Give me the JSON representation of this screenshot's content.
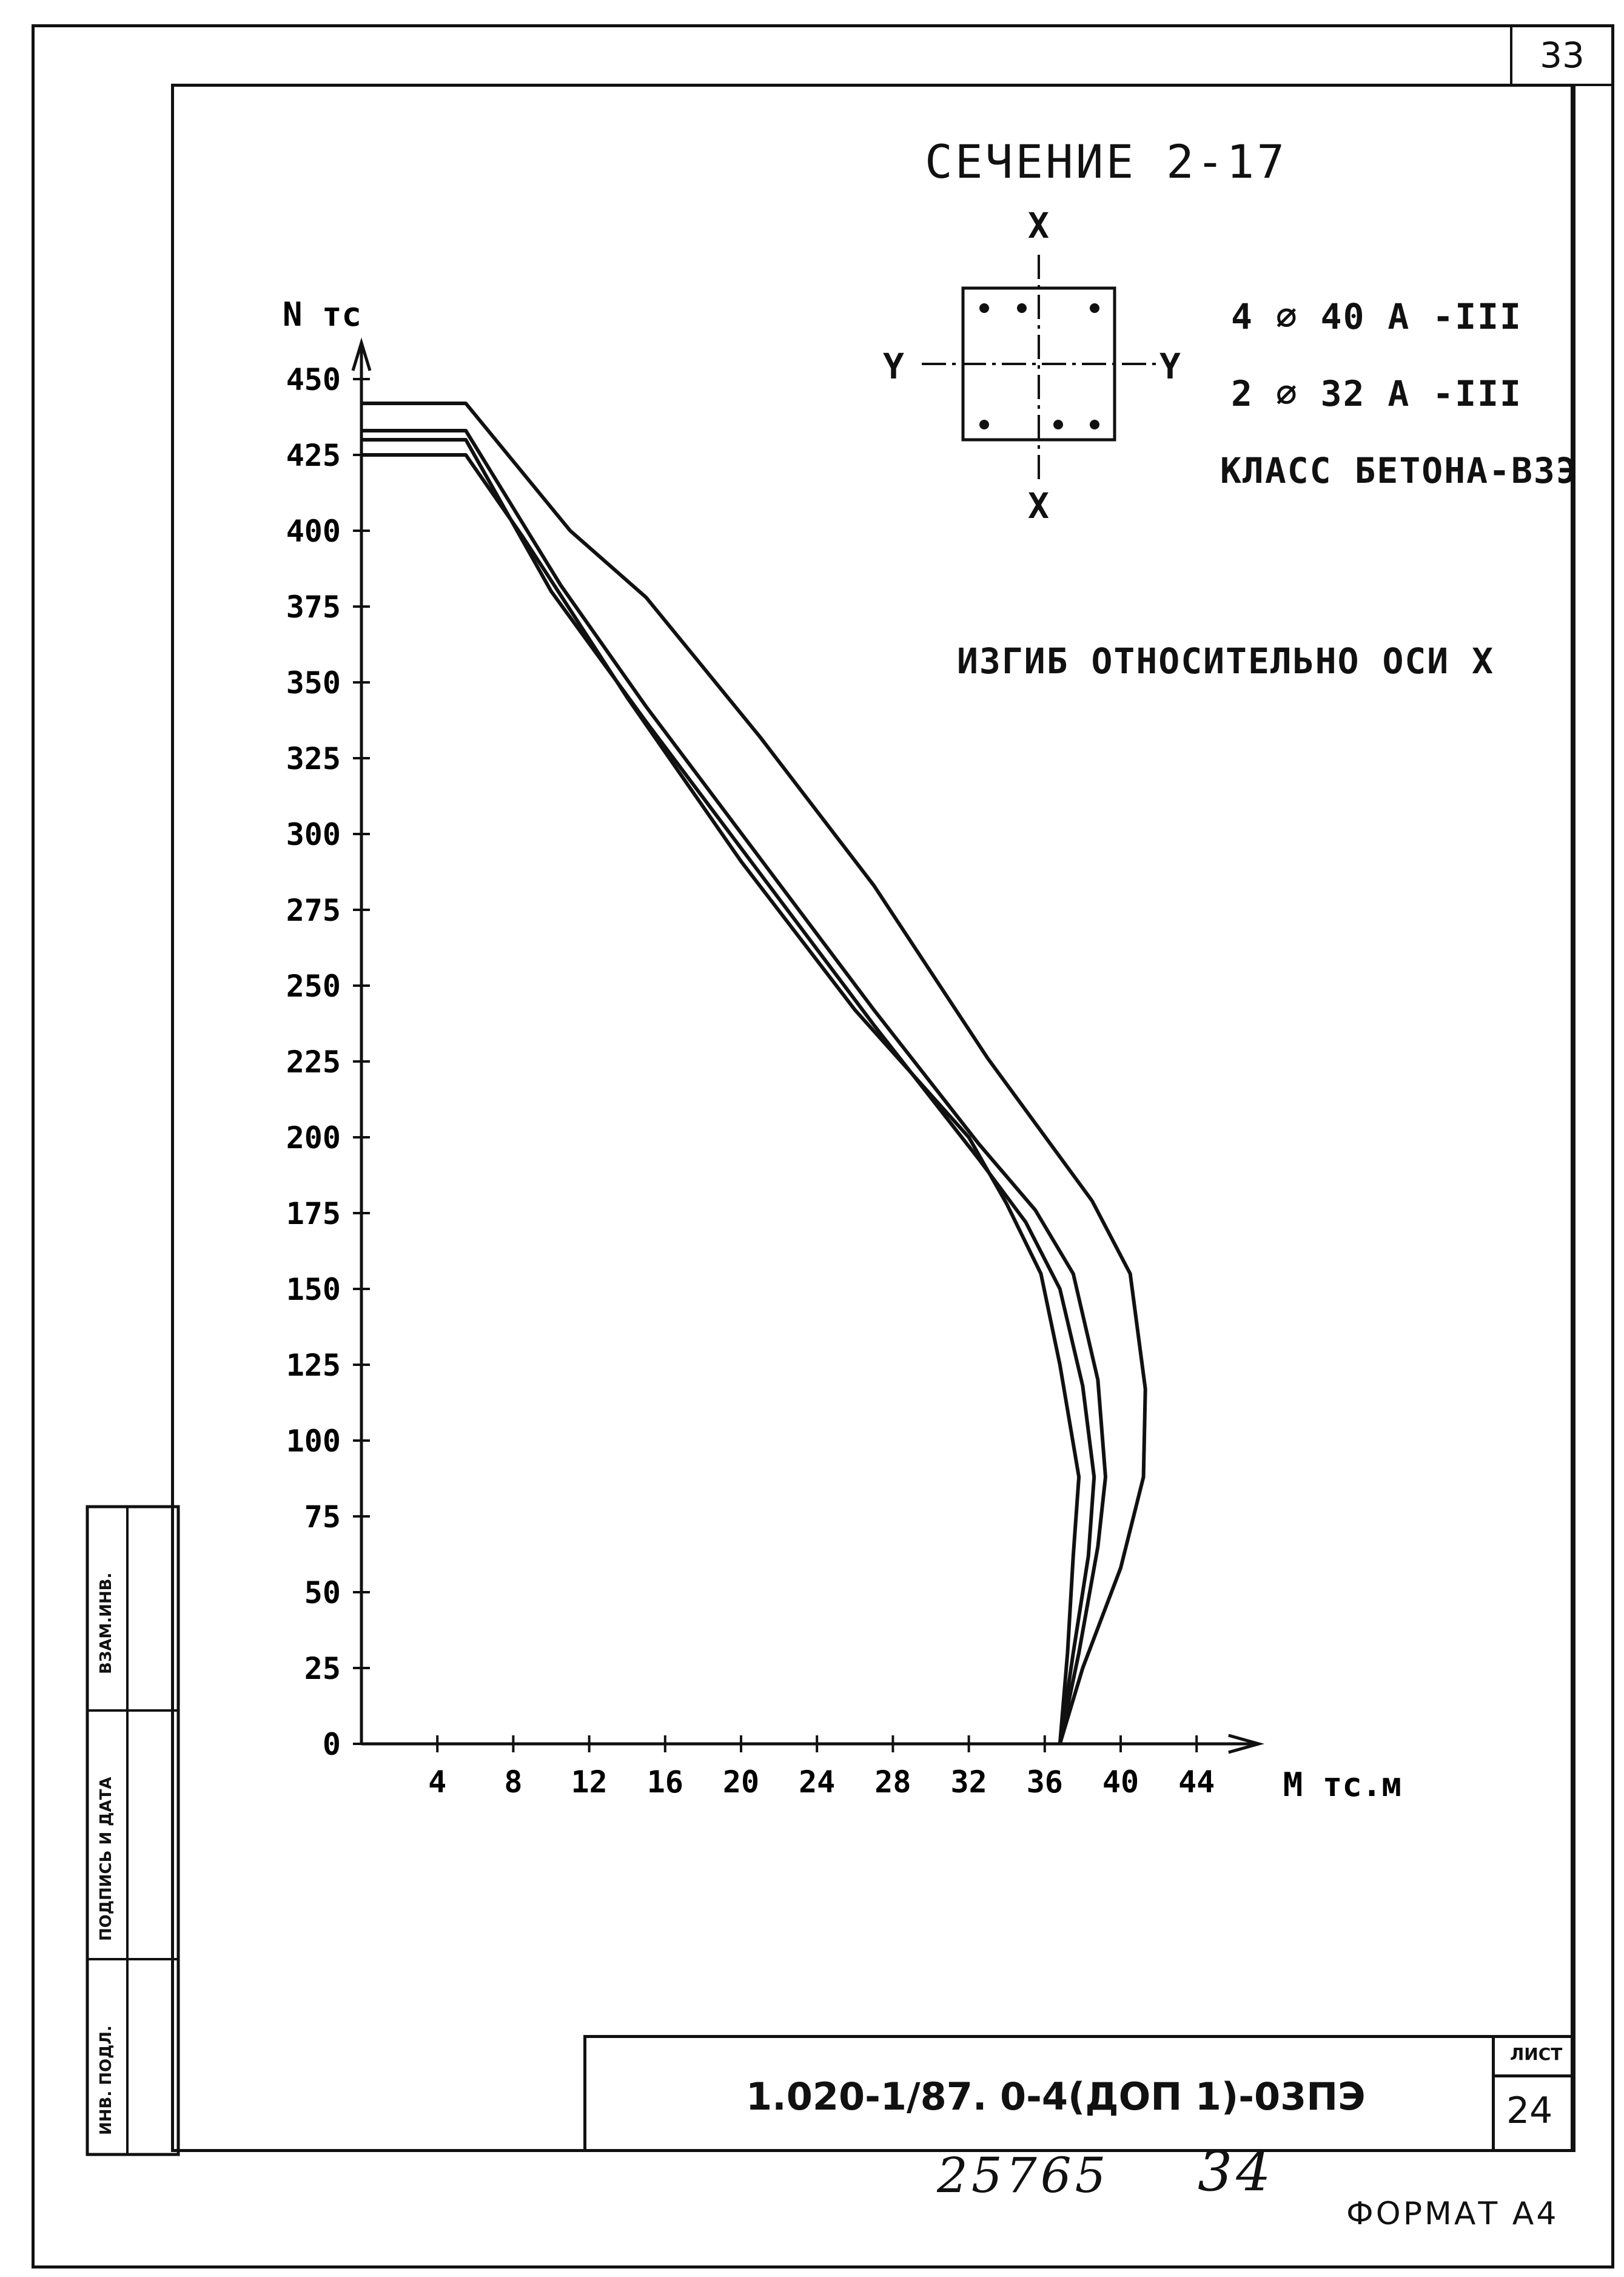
{
  "sheet_corner_number": "33",
  "section_title": "СЕЧЕНИЕ 2-17",
  "cross_section": {
    "axis_x_top": "X",
    "axis_x_bottom": "X",
    "axis_y_left": "Y",
    "axis_y_right": "Y"
  },
  "reinforcement": [
    "4 ⌀ 40 А -III",
    "2 ⌀ 32 А -III"
  ],
  "concrete_class": "КЛАСС БЕТОНА-В3Э",
  "bending_note": "ИЗГИБ ОТНОСИТЕЛЬНО ОСИ X",
  "stamp": {
    "doc_code": "1.020-1/87. 0-4(ДОП 1)-03ПЭ",
    "sheet_label": "ЛИСТ",
    "sheet_number": "24"
  },
  "left_stamp": {
    "inv_podl": "ИНВ. ПОДЛ.",
    "podpis_data": "ПОДПИСЬ И ДАТА",
    "vzam_inv": "ВЗАМ.ИНВ."
  },
  "handwritten_number": "25765",
  "handwritten_page": "34",
  "format_label": "ФОРМАТ А4",
  "chart_data": {
    "type": "line",
    "ylabel": "N тс",
    "xlabel": "M тс.м",
    "xlim": [
      0,
      46
    ],
    "ylim": [
      0,
      450
    ],
    "x_ticks": [
      4,
      8,
      12,
      16,
      20,
      24,
      28,
      32,
      36,
      40,
      44
    ],
    "y_ticks": [
      0,
      25,
      50,
      75,
      100,
      125,
      150,
      175,
      200,
      225,
      250,
      275,
      300,
      325,
      350,
      375,
      400,
      425,
      450
    ],
    "grid": false,
    "series": [
      {
        "points": [
          [
            0,
            442
          ],
          [
            5.5,
            442
          ],
          [
            11,
            400
          ],
          [
            15,
            378
          ],
          [
            21,
            332
          ],
          [
            27,
            283
          ],
          [
            33,
            226
          ],
          [
            38.5,
            179
          ],
          [
            40.5,
            155
          ],
          [
            41.3,
            117
          ],
          [
            41.2,
            88
          ],
          [
            40,
            58
          ],
          [
            38,
            25
          ],
          [
            36.8,
            0
          ]
        ]
      },
      {
        "points": [
          [
            0,
            433
          ],
          [
            5.5,
            433
          ],
          [
            10.5,
            382
          ],
          [
            15,
            342
          ],
          [
            21,
            292
          ],
          [
            27,
            242
          ],
          [
            32.5,
            198
          ],
          [
            35.5,
            176
          ],
          [
            37.5,
            155
          ],
          [
            38.8,
            120
          ],
          [
            39.2,
            88
          ],
          [
            38.8,
            65
          ],
          [
            37.8,
            30
          ],
          [
            36.8,
            0
          ]
        ]
      },
      {
        "points": [
          [
            0,
            430
          ],
          [
            5.5,
            430
          ],
          [
            10,
            380
          ],
          [
            15,
            337
          ],
          [
            21,
            287
          ],
          [
            27,
            237
          ],
          [
            32.5,
            193
          ],
          [
            35,
            172
          ],
          [
            36.8,
            150
          ],
          [
            38,
            118
          ],
          [
            38.6,
            88
          ],
          [
            38.3,
            62
          ],
          [
            37.5,
            30
          ],
          [
            36.8,
            0
          ]
        ]
      },
      {
        "points": [
          [
            0,
            425
          ],
          [
            5.5,
            425
          ],
          [
            8.5,
            398
          ],
          [
            14,
            345
          ],
          [
            20,
            291
          ],
          [
            26,
            242
          ],
          [
            32,
            200
          ],
          [
            34,
            178
          ],
          [
            35.8,
            155
          ],
          [
            36.8,
            125
          ],
          [
            37.8,
            88
          ],
          [
            37.5,
            62
          ],
          [
            37.2,
            30
          ],
          [
            36.8,
            0
          ]
        ]
      }
    ]
  }
}
